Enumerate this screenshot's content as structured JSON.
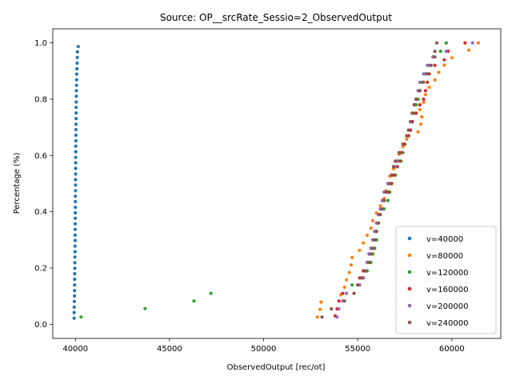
{
  "chart_data": {
    "type": "scatter",
    "title": "Source: OP__srcRate_Sessio=2_ObservedOutput",
    "xlabel": "ObservedOutput [rec/ot]",
    "ylabel": "Percentage (%)",
    "xlim": [
      38800,
      62600
    ],
    "ylim": [
      -0.05,
      1.05
    ],
    "xticks": [
      40000,
      45000,
      50000,
      55000,
      60000
    ],
    "xtick_labels": [
      "40000",
      "45000",
      "50000",
      "55000",
      "60000"
    ],
    "yticks": [
      0.0,
      0.2,
      0.4,
      0.6,
      0.8,
      1.0
    ],
    "ytick_labels": [
      "0.0",
      "0.2",
      "0.4",
      "0.6",
      "0.8",
      "1.0"
    ],
    "grid": false,
    "legend_position": "lower-right",
    "series": [
      {
        "name": "v=40000",
        "color": "#1f77b4",
        "y": [
          0.022,
          0.042,
          0.061,
          0.081,
          0.101,
          0.12,
          0.14,
          0.16,
          0.18,
          0.199,
          0.219,
          0.239,
          0.258,
          0.278,
          0.298,
          0.317,
          0.337,
          0.357,
          0.377,
          0.396,
          0.416,
          0.436,
          0.455,
          0.475,
          0.495,
          0.514,
          0.534,
          0.554,
          0.574,
          0.593,
          0.613,
          0.633,
          0.652,
          0.672,
          0.692,
          0.711,
          0.731,
          0.751,
          0.771,
          0.79,
          0.81,
          0.83,
          0.849,
          0.869,
          0.889,
          0.908,
          0.928,
          0.948,
          0.968,
          0.987
        ],
        "x": [
          39930,
          39930,
          39940,
          39945,
          39950,
          39955,
          39960,
          39960,
          39965,
          39970,
          39970,
          39975,
          39980,
          39980,
          39985,
          39985,
          39990,
          39990,
          39995,
          39995,
          40000,
          40000,
          40000,
          40005,
          40005,
          40010,
          40010,
          40010,
          40015,
          40015,
          40020,
          40020,
          40025,
          40025,
          40030,
          40030,
          40035,
          40040,
          40040,
          40045,
          40050,
          40055,
          40060,
          40065,
          40070,
          40080,
          40090,
          40100,
          40110,
          40150
        ]
      },
      {
        "name": "v=80000",
        "color": "#ff7f0e",
        "y": [
          0.026,
          0.053,
          0.079,
          0.105,
          0.132,
          0.158,
          0.184,
          0.211,
          0.237,
          0.263,
          0.289,
          0.316,
          0.342,
          0.368,
          0.395,
          0.421,
          0.447,
          0.474,
          0.5,
          0.526,
          0.553,
          0.579,
          0.605,
          0.632,
          0.658,
          0.684,
          0.711,
          0.737,
          0.763,
          0.789,
          0.816,
          0.842,
          0.868,
          0.895,
          0.921,
          0.947,
          0.974,
          1.0
        ],
        "x": [
          52850,
          53000,
          53050,
          54100,
          54300,
          54400,
          54550,
          54650,
          54700,
          55100,
          55300,
          55500,
          55700,
          55800,
          56000,
          56200,
          56400,
          56500,
          56600,
          56700,
          56900,
          57000,
          57200,
          57400,
          57600,
          58200,
          58350,
          58400,
          58300,
          58500,
          58600,
          58800,
          59100,
          59300,
          59600,
          60000,
          60900,
          61400
        ]
      },
      {
        "name": "v=120000",
        "color": "#2ca02c",
        "y": [
          0.026,
          0.056,
          0.083,
          0.11,
          0.14,
          0.165,
          0.19,
          0.22,
          0.25,
          0.27,
          0.3,
          0.33,
          0.36,
          0.39,
          0.41,
          0.44,
          0.47,
          0.5,
          0.53,
          0.56,
          0.58,
          0.61,
          0.64,
          0.67,
          0.69,
          0.72,
          0.75,
          0.78,
          0.8,
          0.83,
          0.86,
          0.89,
          0.92,
          0.95,
          0.97,
          1.0
        ],
        "x": [
          40300,
          43700,
          46300,
          47200,
          54700,
          55300,
          55500,
          55700,
          55800,
          55900,
          56000,
          56000,
          56100,
          56200,
          56400,
          56600,
          56700,
          56800,
          57000,
          57100,
          57300,
          57400,
          57500,
          57700,
          57800,
          57900,
          58000,
          58100,
          58200,
          58300,
          58400,
          58600,
          58800,
          59000,
          59400,
          59700
        ]
      },
      {
        "name": "v=160000",
        "color": "#d62728",
        "y": [
          0.03,
          0.055,
          0.083,
          0.11,
          0.14,
          0.165,
          0.19,
          0.22,
          0.25,
          0.27,
          0.3,
          0.33,
          0.36,
          0.39,
          0.41,
          0.44,
          0.47,
          0.5,
          0.53,
          0.56,
          0.58,
          0.61,
          0.64,
          0.67,
          0.69,
          0.72,
          0.75,
          0.78,
          0.8,
          0.83,
          0.86,
          0.89,
          0.92,
          0.94,
          0.97,
          1.0
        ],
        "x": [
          53800,
          53900,
          54000,
          54200,
          55000,
          55100,
          55300,
          55500,
          55600,
          55700,
          55800,
          55900,
          56000,
          56100,
          56300,
          56400,
          56600,
          56800,
          56900,
          57100,
          57200,
          57300,
          57500,
          57700,
          57800,
          57900,
          58100,
          58300,
          58500,
          58600,
          58700,
          58800,
          59100,
          59600,
          59800,
          60700
        ]
      },
      {
        "name": "v=200000",
        "color": "#9467bd",
        "y": [
          0.026,
          0.055,
          0.083,
          0.11,
          0.14,
          0.165,
          0.19,
          0.22,
          0.25,
          0.27,
          0.3,
          0.33,
          0.36,
          0.39,
          0.41,
          0.44,
          0.47,
          0.5,
          0.53,
          0.56,
          0.58,
          0.61,
          0.64,
          0.67,
          0.69,
          0.72,
          0.75,
          0.78,
          0.8,
          0.83,
          0.86,
          0.89,
          0.92,
          0.95,
          0.97,
          1.0
        ],
        "x": [
          53900,
          54000,
          54200,
          54400,
          55100,
          55300,
          55400,
          55500,
          55600,
          55700,
          55800,
          55900,
          56000,
          56100,
          56200,
          56300,
          56400,
          56600,
          56800,
          57000,
          57100,
          57200,
          57400,
          57600,
          57700,
          57800,
          57900,
          58000,
          58100,
          58200,
          58300,
          58500,
          58700,
          59000,
          59700,
          61100
        ]
      },
      {
        "name": "v=240000",
        "color": "#8c564b",
        "y": [
          0.026,
          0.055,
          0.083,
          0.11,
          0.14,
          0.165,
          0.19,
          0.22,
          0.25,
          0.27,
          0.3,
          0.33,
          0.36,
          0.39,
          0.41,
          0.44,
          0.47,
          0.5,
          0.53,
          0.56,
          0.58,
          0.61,
          0.64,
          0.67,
          0.69,
          0.72,
          0.75,
          0.78,
          0.8,
          0.83,
          0.86,
          0.89,
          0.92,
          0.95,
          0.97,
          1.0
        ],
        "x": [
          53100,
          53600,
          54300,
          54800,
          55000,
          55200,
          55400,
          55600,
          55700,
          55800,
          55900,
          56000,
          56100,
          56200,
          56300,
          56400,
          56500,
          56700,
          56800,
          56900,
          57000,
          57200,
          57400,
          57600,
          57700,
          57800,
          57900,
          58000,
          58100,
          58300,
          58500,
          58700,
          58900,
          59100,
          59100,
          59200
        ]
      }
    ]
  }
}
